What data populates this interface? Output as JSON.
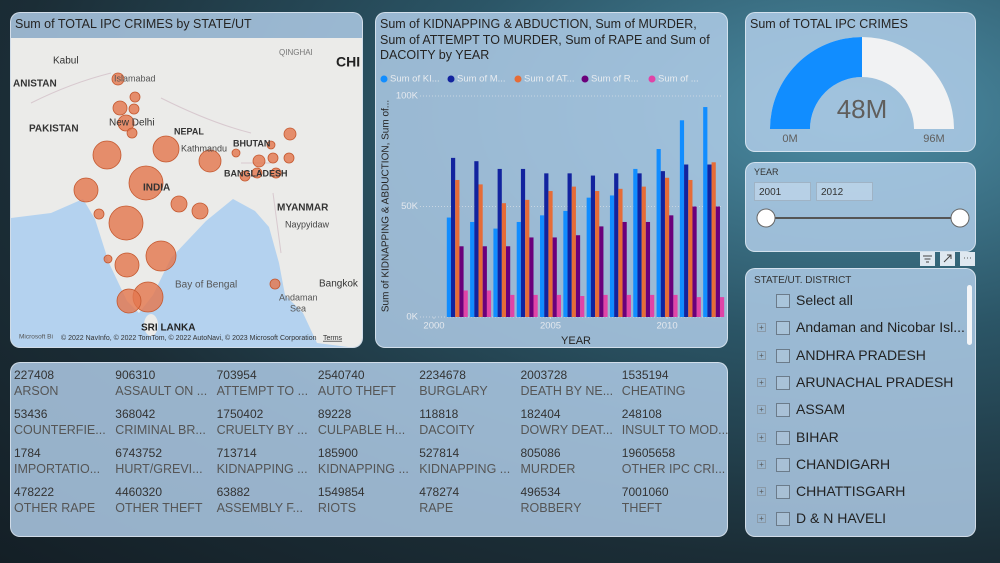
{
  "map": {
    "title": "Sum of TOTAL IPC CRIMES by STATE/UT",
    "labels": [
      "Kabul",
      "Islamabad",
      "ANISTAN",
      "PAKISTAN",
      "New Delhi",
      "NEPAL",
      "Kathmandu",
      "BHUTAN",
      "INDIA",
      "BANGLADESH",
      "QINGHAI",
      "CHI",
      "MYANMAR",
      "Naypyidaw",
      "Bay of Bengal",
      "Andaman",
      "Sea",
      "Bangkok",
      "SRI LANKA"
    ],
    "logo": "Microsoft Bi",
    "attribution": "© 2022 NavInfo, © 2022 TomTom, © 2022 AutoNavi, © 2023 Microsoft Corporation",
    "terms": "Terms"
  },
  "bar_chart": {
    "type": "bar",
    "title": "Sum of KIDNAPPING & ABDUCTION, Sum of MURDER, Sum of ATTEMPT TO MURDER, Sum of RAPE and Sum of DACOITY by YEAR",
    "x_label": "YEAR",
    "y_label": "Sum of KIDNAPPING & ABDUCTION, Sum of...",
    "x": [
      2001,
      2002,
      2003,
      2004,
      2005,
      2006,
      2007,
      2008,
      2009,
      2010,
      2011,
      2012
    ],
    "xlim": [
      1999.4,
      2012.4
    ],
    "xticks": [
      2000,
      2005,
      2010
    ],
    "ylim": [
      0,
      100000
    ],
    "yticks": [
      {
        "value": 0,
        "label": "0K"
      },
      {
        "value": 50000,
        "label": "50K"
      },
      {
        "value": 100000,
        "label": "100K"
      }
    ],
    "grid": true,
    "series": [
      {
        "name": "Sum of KI...",
        "color": "#118dff",
        "values": [
          45000,
          43000,
          40000,
          43000,
          46000,
          48000,
          54000,
          55000,
          67000,
          76000,
          89000,
          95000
        ]
      },
      {
        "name": "Sum of M...",
        "color": "#12239e",
        "values": [
          72000,
          70500,
          67000,
          67000,
          65000,
          65000,
          64000,
          65000,
          65000,
          66000,
          69000,
          69000
        ]
      },
      {
        "name": "Sum of AT...",
        "color": "#e66c37",
        "values": [
          62000,
          60000,
          51500,
          53000,
          57000,
          59000,
          57000,
          58000,
          59000,
          63000,
          62000,
          70000
        ]
      },
      {
        "name": "Sum of R...",
        "color": "#6b007b",
        "values": [
          32000,
          32000,
          32000,
          36000,
          36000,
          37000,
          41000,
          43000,
          43000,
          46000,
          50000,
          50000
        ]
      },
      {
        "name": "Sum of ...",
        "color": "#e044a7",
        "values": [
          12000,
          12000,
          10000,
          10000,
          10000,
          9500,
          10000,
          10000,
          10000,
          10000,
          9000,
          9000
        ]
      }
    ]
  },
  "gauge": {
    "title": "Sum of TOTAL IPC CRIMES",
    "value": {
      "value": 48000000,
      "label": "48M"
    },
    "min": {
      "value": 0,
      "label": "0M"
    },
    "max": {
      "value": 96000000,
      "label": "96M"
    }
  },
  "year_slicer": {
    "title": "YEAR",
    "range": [
      2001,
      2012
    ]
  },
  "state_slicer": {
    "title": "STATE/UT. DISTRICT",
    "items": [
      "Select all",
      "Andaman and Nicobar Isl...",
      "ANDHRA PRADESH",
      "ARUNACHAL PRADESH",
      "ASSAM",
      "BIHAR",
      "CHANDIGARH",
      "CHHATTISGARH",
      "D & N HAVELI"
    ]
  },
  "card": {
    "rows": [
      [
        {
          "value": 227408,
          "label": "ARSON"
        },
        {
          "value": 906310,
          "label": "ASSAULT ON ..."
        },
        {
          "value": 703954,
          "label": "ATTEMPT TO ..."
        },
        {
          "value": 2540740,
          "label": "AUTO THEFT"
        },
        {
          "value": 2234678,
          "label": "BURGLARY"
        },
        {
          "value": 2003728,
          "label": "DEATH BY NE..."
        },
        {
          "value": 1535194,
          "label": "CHEATING"
        }
      ],
      [
        {
          "value": 53436,
          "label": "COUNTERFIE..."
        },
        {
          "value": 368042,
          "label": "CRIMINAL BR..."
        },
        {
          "value": 1750402,
          "label": "CRUELTY BY ..."
        },
        {
          "value": 89228,
          "label": "CULPABLE H..."
        },
        {
          "value": 118818,
          "label": "DACOITY"
        },
        {
          "value": 182404,
          "label": "DOWRY DEAT..."
        },
        {
          "value": 248108,
          "label": "INSULT TO MOD..."
        }
      ],
      [
        {
          "value": 1784,
          "label": "IMPORTATIO..."
        },
        {
          "value": 6743752,
          "label": "HURT/GREVI..."
        },
        {
          "value": 713714,
          "label": "KIDNAPPING ..."
        },
        {
          "value": 185900,
          "label": "KIDNAPPING ..."
        },
        {
          "value": 527814,
          "label": "KIDNAPPING ..."
        },
        {
          "value": 805086,
          "label": "MURDER"
        },
        {
          "value": 19605658,
          "label": "OTHER IPC CRI..."
        }
      ],
      [
        {
          "value": 478222,
          "label": "OTHER RAPE"
        },
        {
          "value": 4460320,
          "label": "OTHER THEFT"
        },
        {
          "value": 63882,
          "label": "ASSEMBLY F..."
        },
        {
          "value": 1549854,
          "label": "RIOTS"
        },
        {
          "value": 478274,
          "label": "RAPE"
        },
        {
          "value": 496534,
          "label": "ROBBERY"
        },
        {
          "value": 7001060,
          "label": "THEFT"
        }
      ]
    ]
  }
}
